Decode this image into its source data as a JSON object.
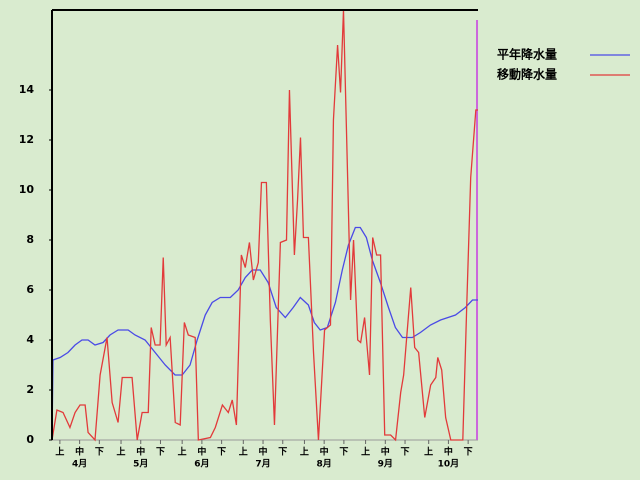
{
  "chart_data": {
    "type": "line",
    "series": [
      {
        "name": "平年降水量",
        "color": "#4a4ae6",
        "x": [
          0,
          0.5,
          4.1,
          8.1,
          11.7,
          15.2,
          18.3,
          21.8,
          25.9,
          29.4,
          33.5,
          38.6,
          42.1,
          47.2,
          52.3,
          57.4,
          62.4,
          66,
          70,
          73.6,
          77.7,
          81.2,
          85.3,
          90.4,
          94.4,
          98,
          101.5,
          105.6,
          109.6,
          113.7,
          118.3,
          122.3,
          125.9,
          130,
          133,
          136,
          139.6,
          143.7,
          147.2,
          150.3,
          153.8,
          156.3,
          159.4,
          162.4,
          166.5,
          170.6,
          174.1,
          177.7,
          182.7,
          186.8,
          191.9,
          197,
          204.6,
          209.6,
          213.2,
          216
        ],
        "values": [
          0,
          3.2,
          3.3,
          3.5,
          3.8,
          4.0,
          4.0,
          3.8,
          3.9,
          4.2,
          4.4,
          4.4,
          4.2,
          4.0,
          3.5,
          3.0,
          2.6,
          2.6,
          3.0,
          4.0,
          5.0,
          5.5,
          5.7,
          5.7,
          6.0,
          6.5,
          6.8,
          6.8,
          6.3,
          5.3,
          4.9,
          5.3,
          5.7,
          5.4,
          4.7,
          4.4,
          4.5,
          5.5,
          6.8,
          7.8,
          8.5,
          8.5,
          8.1,
          7.2,
          6.3,
          5.3,
          4.5,
          4.1,
          4.1,
          4.3,
          4.6,
          4.8,
          5.0,
          5.3,
          5.6,
          5.6
        ]
      },
      {
        "name": "移動降水量",
        "color": "#e23a3a",
        "x": [
          0,
          2.5,
          5.6,
          9.1,
          11.7,
          14.2,
          16.8,
          18.3,
          21.8,
          24.4,
          27.9,
          30.5,
          33.5,
          35.6,
          40.6,
          43.2,
          45.7,
          48.8,
          50.3,
          52.3,
          54.8,
          56.4,
          57.9,
          59.9,
          62.5,
          65,
          67.1,
          69.1,
          72.6,
          74.2,
          80.3,
          82.8,
          86.4,
          89.4,
          91.4,
          93.5,
          96,
          98,
          100.1,
          102.1,
          104.6,
          106.2,
          108.7,
          110.7,
          112.8,
          115.8,
          118.9,
          120.4,
          122.9,
          124.5,
          126,
          127.5,
          130,
          132.6,
          135.1,
          138.2,
          141.2,
          142.7,
          144.8,
          146.3,
          147.8,
          149.9,
          151.4,
          152.9,
          155,
          156.5,
          158.5,
          161,
          162.6,
          164.6,
          166.6,
          168.7,
          171.7,
          174.2,
          176.8,
          178.3,
          181.9,
          183.9,
          185.9,
          189,
          192,
          194.6,
          195.6,
          197.6,
          199.6,
          202.2,
          208.3,
          210.3,
          212.3,
          214.9,
          216
        ],
        "values": [
          0,
          1.2,
          1.1,
          0.5,
          1.1,
          1.4,
          1.4,
          0.3,
          0,
          2.6,
          4.1,
          1.5,
          0.7,
          2.5,
          2.5,
          0,
          1.1,
          1.1,
          4.5,
          3.8,
          3.8,
          7.3,
          3.8,
          4.1,
          0.7,
          0.6,
          4.7,
          4.2,
          4.1,
          0,
          0.1,
          0.5,
          1.4,
          1.1,
          1.6,
          0.6,
          7.4,
          6.9,
          7.9,
          6.4,
          7.1,
          10.3,
          10.3,
          4.8,
          0.6,
          7.9,
          8.0,
          14.0,
          7.4,
          9.6,
          12.1,
          8.1,
          8.1,
          3.5,
          0,
          4.4,
          4.6,
          12.8,
          15.8,
          13.9,
          17.2,
          10.5,
          5.6,
          8.0,
          4.0,
          3.9,
          4.9,
          2.6,
          8.1,
          7.4,
          7.4,
          0.2,
          0.2,
          0,
          1.9,
          2.6,
          6.1,
          3.7,
          3.5,
          0.9,
          2.2,
          2.5,
          3.3,
          2.8,
          0.9,
          0,
          0,
          5.4,
          10.5,
          13.2,
          13.2
        ]
      }
    ],
    "xlim": [
      0,
      216
    ],
    "ylim": [
      0,
      17.2
    ],
    "yticks": [
      0,
      2,
      4,
      6,
      8,
      10,
      12,
      14
    ],
    "xticks": [
      {
        "value": 4,
        "label": "上"
      },
      {
        "value": 14,
        "label": "中"
      },
      {
        "value": 24,
        "label": "下"
      },
      {
        "value": 35,
        "label": "上"
      },
      {
        "value": 45,
        "label": "中"
      },
      {
        "value": 55,
        "label": "下"
      },
      {
        "value": 66,
        "label": "上"
      },
      {
        "value": 76,
        "label": "中"
      },
      {
        "value": 86,
        "label": "下"
      },
      {
        "value": 97,
        "label": "上"
      },
      {
        "value": 107,
        "label": "中"
      },
      {
        "value": 117,
        "label": "下"
      },
      {
        "value": 128,
        "label": "上"
      },
      {
        "value": 138,
        "label": "中"
      },
      {
        "value": 148,
        "label": "下"
      },
      {
        "value": 159,
        "label": "上"
      },
      {
        "value": 169,
        "label": "中"
      },
      {
        "value": 179,
        "label": "下"
      },
      {
        "value": 191,
        "label": "上"
      },
      {
        "value": 201,
        "label": "中"
      },
      {
        "value": 211,
        "label": "下"
      }
    ],
    "month_labels": [
      {
        "value": 14,
        "label": "4月"
      },
      {
        "value": 45,
        "label": "5月"
      },
      {
        "value": 76,
        "label": "6月"
      },
      {
        "value": 107,
        "label": "7月"
      },
      {
        "value": 138,
        "label": "8月"
      },
      {
        "value": 169,
        "label": "9月"
      },
      {
        "value": 201,
        "label": "10月"
      }
    ],
    "today_line": {
      "x": 215.5,
      "color": "#cc66dd"
    }
  }
}
